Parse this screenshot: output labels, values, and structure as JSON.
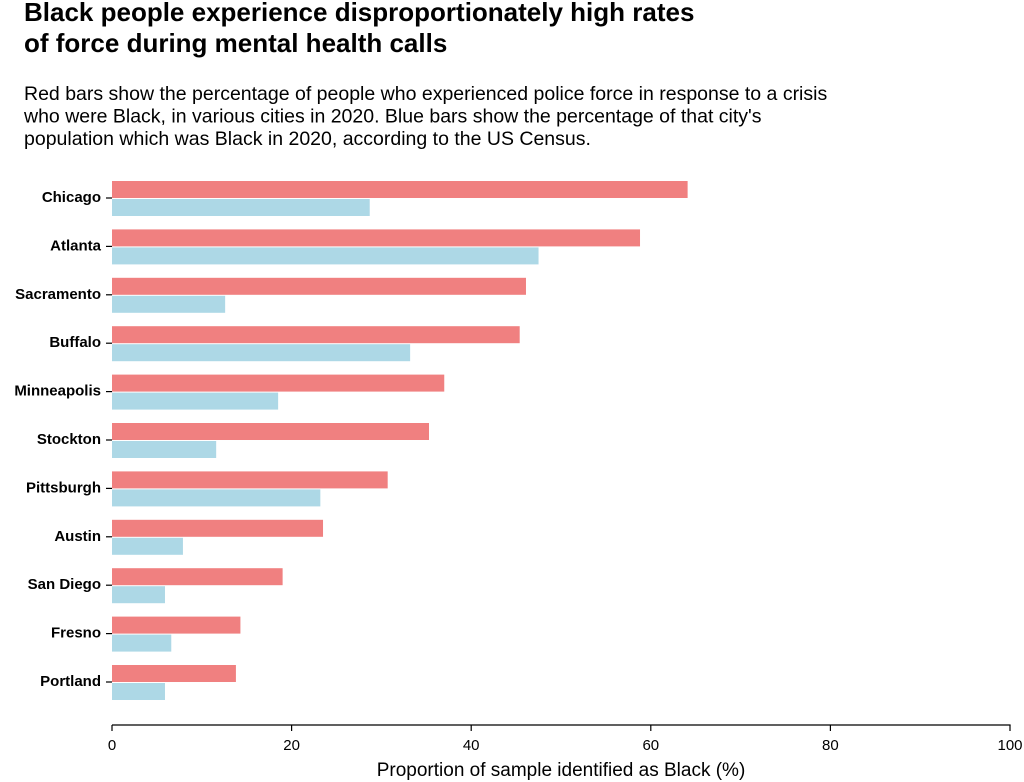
{
  "chart_data": {
    "type": "barh",
    "title": [
      "Black people experience disproportionately high rates",
      "of force during mental health calls"
    ],
    "subtitle": [
      "Red bars show the percentage of people who experienced police force in response to a crisis",
      "who were Black, in various cities in 2020. Blue bars show the percentage of that city's",
      "population which was Black in 2020, according to the US Census."
    ],
    "x_label": "Proportion of sample identified as Black (%)",
    "categories": [
      "Chicago",
      "Atlanta",
      "Sacramento",
      "Buffalo",
      "Minneapolis",
      "Stockton",
      "Pittsburgh",
      "Austin",
      "San Diego",
      "Fresno",
      "Portland"
    ],
    "series": [
      {
        "color": "#f08080",
        "values": [
          64.1,
          58.8,
          46.1,
          45.4,
          37.0,
          35.3,
          30.7,
          23.5,
          19.0,
          14.3,
          13.8
        ]
      },
      {
        "color": "#add8e6",
        "values": [
          28.7,
          47.5,
          12.6,
          33.2,
          18.5,
          11.6,
          23.2,
          7.9,
          5.9,
          6.6,
          5.9
        ]
      }
    ],
    "xlim": [
      0,
      100
    ],
    "xticks": [
      0,
      20,
      40,
      60,
      80,
      100
    ],
    "grid": false
  }
}
